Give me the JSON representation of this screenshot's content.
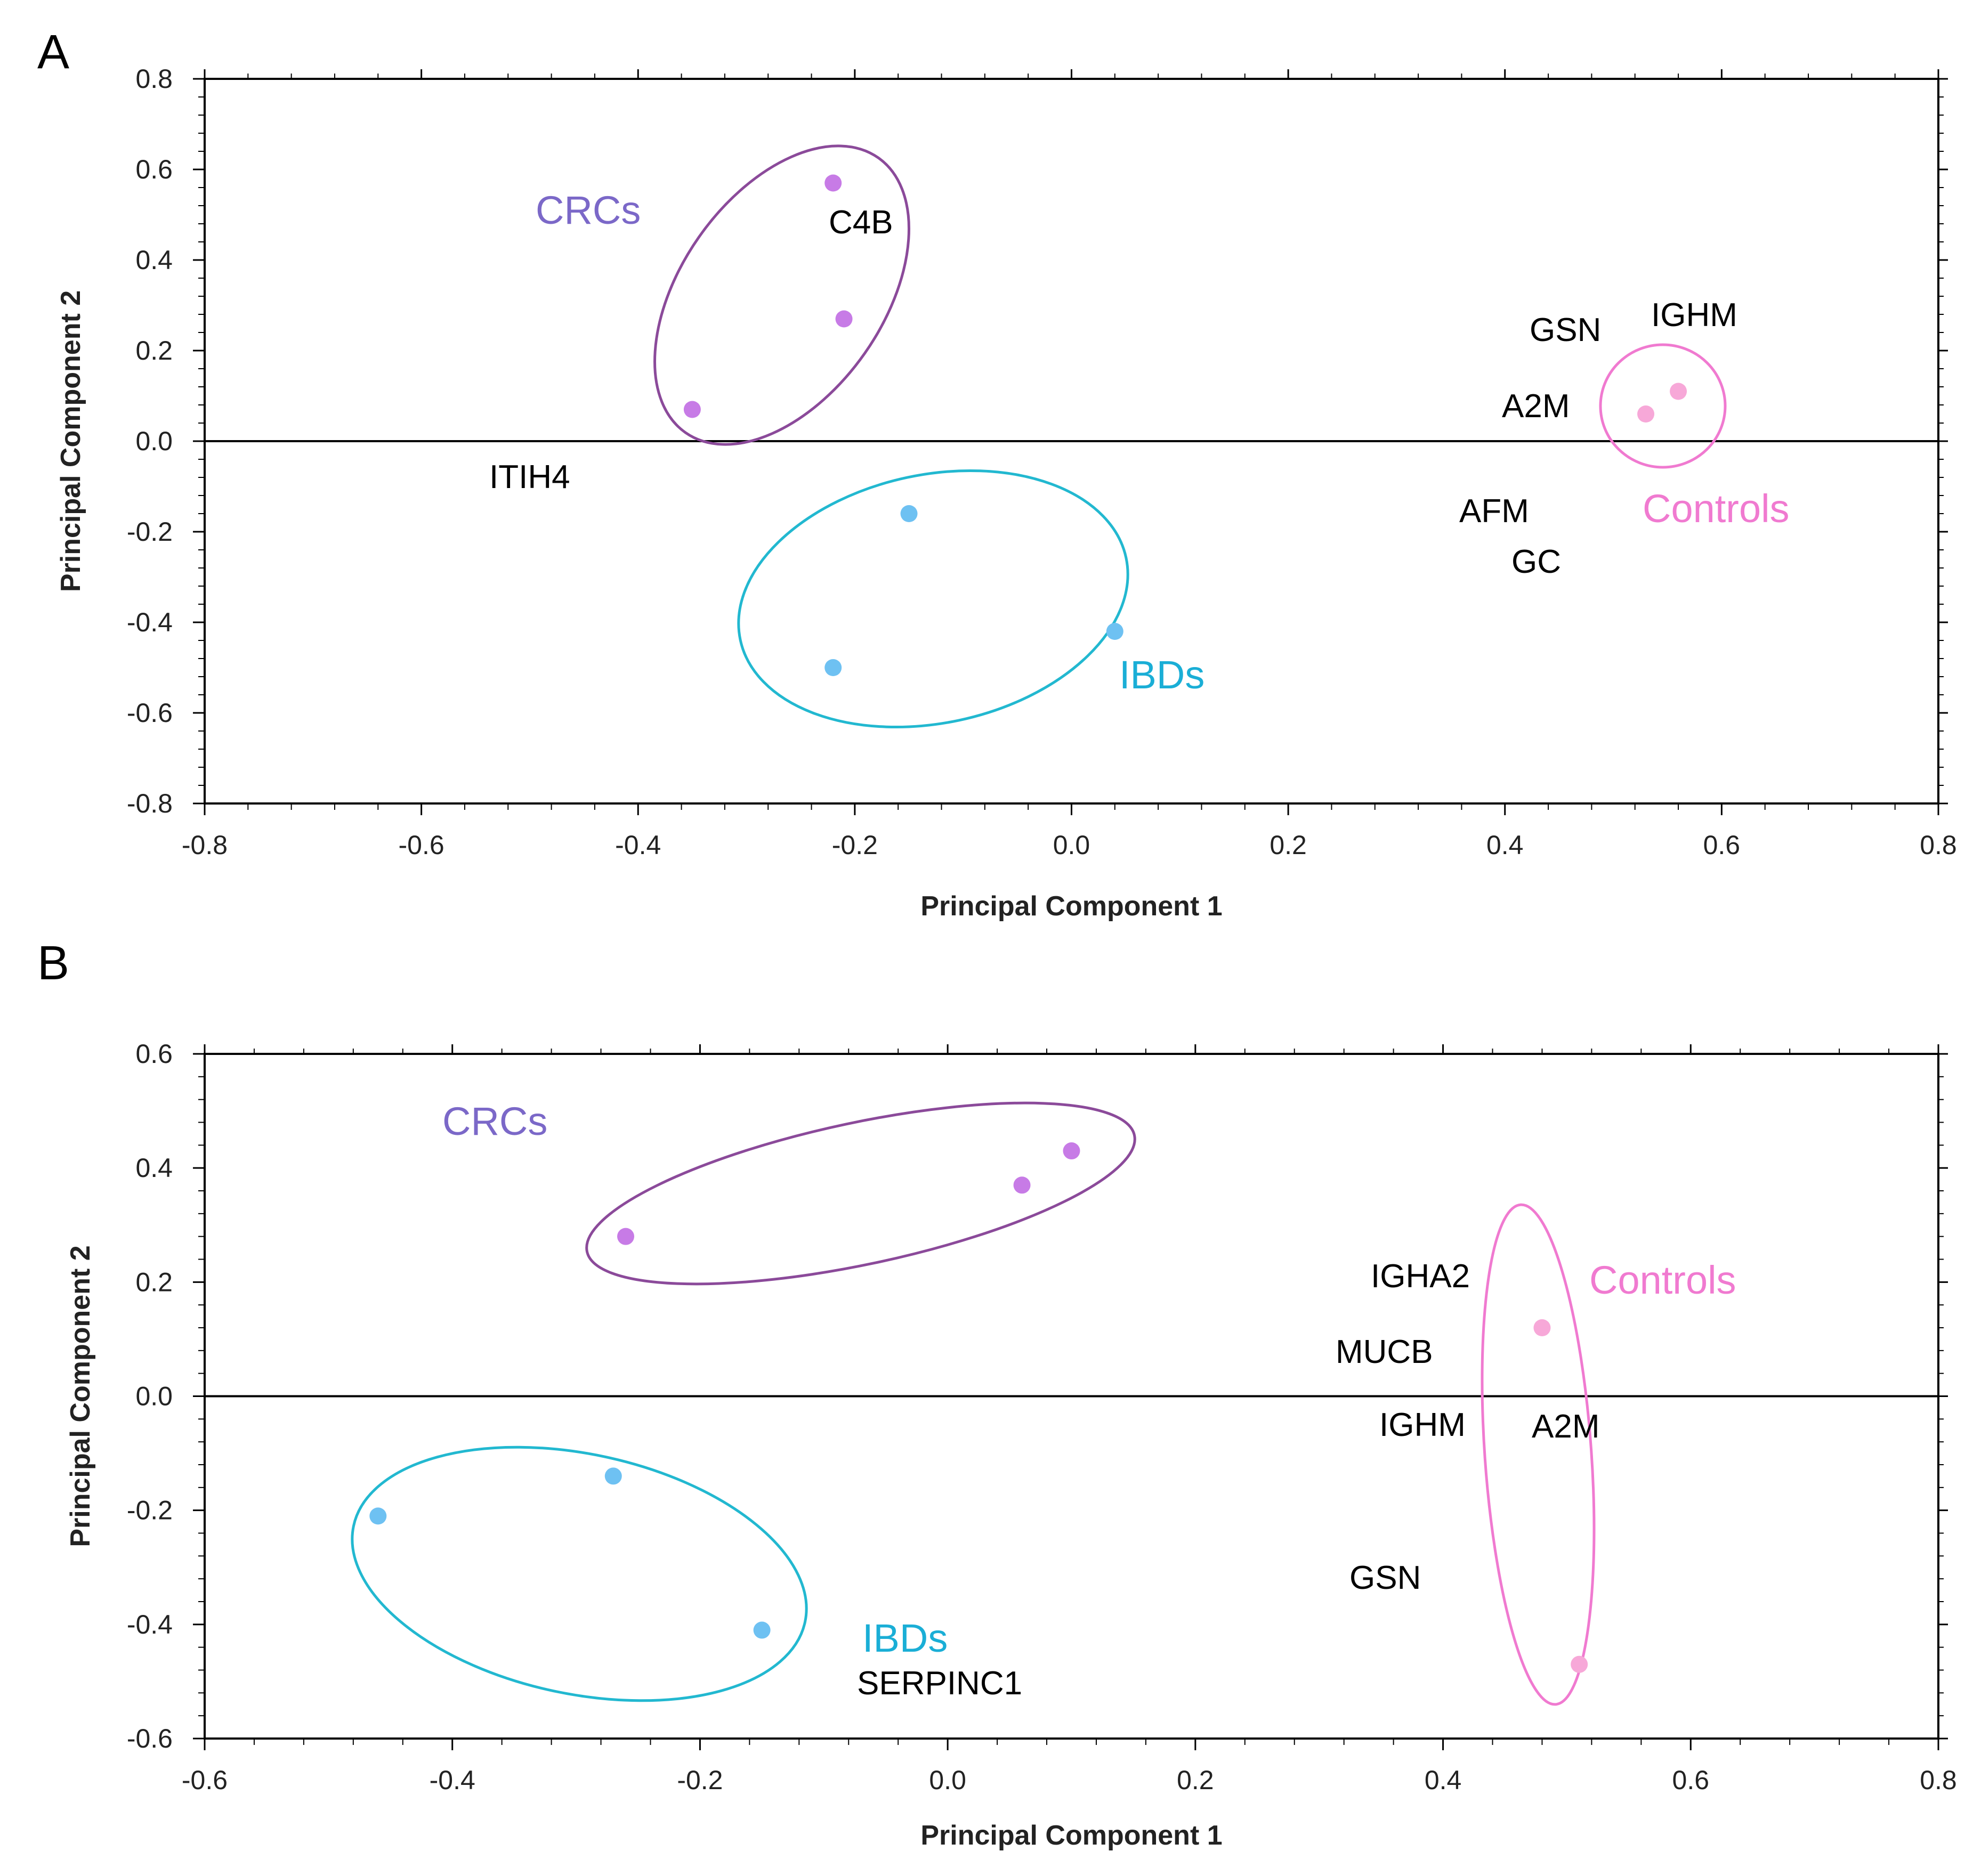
{
  "chart_data": [
    {
      "type": "scatter",
      "panel": "A",
      "xlabel": "Principal Component 1",
      "ylabel": "Principal Component 2",
      "xlim": [
        -0.8,
        0.8
      ],
      "ylim": [
        -0.8,
        0.8
      ],
      "xticks": [
        "-0.8",
        "-0.6",
        "-0.4",
        "-0.2",
        "0.0",
        "0.2",
        "0.4",
        "0.6",
        "0.8"
      ],
      "yticks": [
        "0.8",
        "0.6",
        "0.4",
        "0.2",
        "0.0",
        "-0.2",
        "-0.4",
        "-0.6",
        "-0.8"
      ],
      "groups": [
        {
          "label": "CRCs",
          "color": "#7b68c8",
          "point_color": "#c77be6",
          "ellipse_color": "#8b4a9a",
          "points": [
            {
              "x": -0.22,
              "y": 0.57
            },
            {
              "x": -0.21,
              "y": 0.27
            },
            {
              "x": -0.35,
              "y": 0.07
            }
          ]
        },
        {
          "label": "IBDs",
          "color": "#1aaed6",
          "point_color": "#6ec1f2",
          "ellipse_color": "#22b8d0",
          "points": [
            {
              "x": -0.15,
              "y": -0.16
            },
            {
              "x": -0.22,
              "y": -0.5
            },
            {
              "x": 0.04,
              "y": -0.42
            }
          ]
        },
        {
          "label": "Controls",
          "color": "#f07ad0",
          "point_color": "#f7a8d8",
          "ellipse_color": "#f07ad0",
          "points": [
            {
              "x": 0.53,
              "y": 0.06
            },
            {
              "x": 0.56,
              "y": 0.11
            }
          ]
        }
      ],
      "gene_labels": [
        "C4B",
        "ITIH4",
        "GSN",
        "IGHM",
        "A2M",
        "AFM",
        "GC"
      ]
    },
    {
      "type": "scatter",
      "panel": "B",
      "xlabel": "Principal Component 1",
      "ylabel": "Principal Component 2",
      "xlim": [
        -0.6,
        0.8
      ],
      "ylim": [
        -0.6,
        0.6
      ],
      "xticks": [
        "-0.6",
        "-0.4",
        "-0.2",
        "0.0",
        "0.2",
        "0.4",
        "0.6",
        "0.8"
      ],
      "yticks": [
        "0.6",
        "0.4",
        "0.2",
        "0.0",
        "-0.2",
        "-0.4",
        "-0.6"
      ],
      "groups": [
        {
          "label": "CRCs",
          "color": "#7b68c8",
          "point_color": "#c77be6",
          "ellipse_color": "#8b4a9a",
          "points": [
            {
              "x": -0.26,
              "y": 0.28
            },
            {
              "x": 0.06,
              "y": 0.37
            },
            {
              "x": 0.1,
              "y": 0.43
            }
          ]
        },
        {
          "label": "IBDs",
          "color": "#1aaed6",
          "point_color": "#6ec1f2",
          "ellipse_color": "#22b8d0",
          "points": [
            {
              "x": -0.46,
              "y": -0.21
            },
            {
              "x": -0.27,
              "y": -0.14
            },
            {
              "x": -0.15,
              "y": -0.41
            }
          ]
        },
        {
          "label": "Controls",
          "color": "#f07ad0",
          "point_color": "#f7a8d8",
          "ellipse_color": "#f07ad0",
          "points": [
            {
              "x": 0.48,
              "y": 0.12
            },
            {
              "x": 0.51,
              "y": -0.47
            }
          ]
        }
      ],
      "gene_labels": [
        "IGHA2",
        "MUCB",
        "IGHM",
        "A2M",
        "GSN",
        "SERPINC1"
      ]
    }
  ]
}
